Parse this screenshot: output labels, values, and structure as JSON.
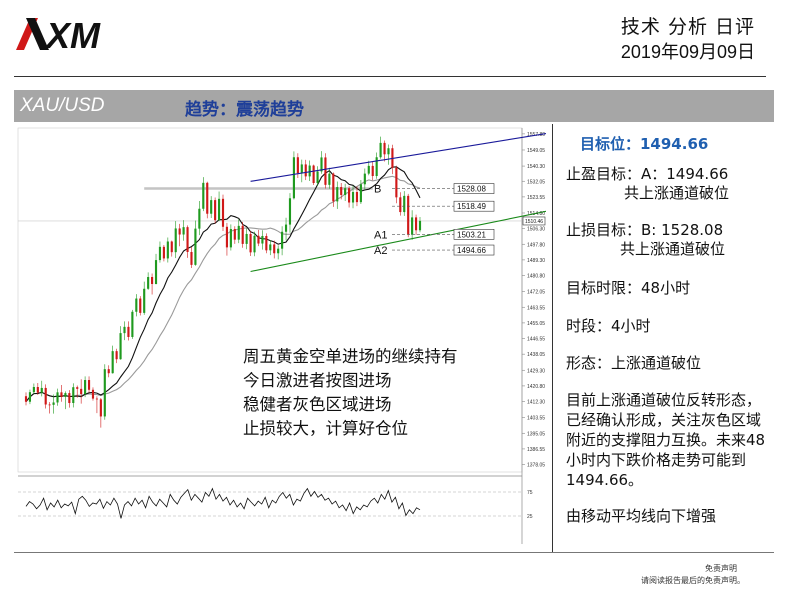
{
  "header": {
    "logo_text": "XM",
    "title": "技术 分析 日评",
    "date": "2019年09月09日"
  },
  "bar": {
    "symbol": "XAU/USD",
    "trend": "趋势：震荡趋势"
  },
  "colors": {
    "bull": "#1f9a1f",
    "bear": "#d01818",
    "upper_channel": "#1a1a9a",
    "lower_channel": "#1a8a1a",
    "ma_fast": "#111111",
    "ma_slow": "#9a9a9a",
    "target_text": "#1f5fb0",
    "trend_text": "#1f3f99",
    "bar_bg": "#a6a6a6"
  },
  "chart_data": {
    "type": "candlestick",
    "yaxis_labels": [
      "1557.80",
      "1549.05",
      "1540.30",
      "1532.05",
      "1523.55",
      "1514.80",
      "1506.30",
      "1497.80",
      "1489.30",
      "1480.80",
      "1472.05",
      "1463.55",
      "1455.05",
      "1446.55",
      "1438.05",
      "1429.30",
      "1420.80",
      "1412.30",
      "1403.55",
      "1395.05",
      "1386.55",
      "1378.05"
    ],
    "ylim": [
      1374,
      1561
    ],
    "last_price": "1510.46",
    "levels": [
      {
        "label": "B",
        "value": 1528.08,
        "text": "1528.08"
      },
      {
        "label": "",
        "value": 1518.49,
        "text": "1518.49"
      },
      {
        "label": "A1",
        "value": 1503.21,
        "text": "1503.21"
      },
      {
        "label": "A2",
        "value": 1494.66,
        "text": "1494.66"
      }
    ],
    "annotations": [
      "周五黄金空单进场的继续持有",
      "今日激进者按图进场",
      "稳健者灰色区域进场",
      "止损较大，计算好仓位"
    ],
    "upper_channel": {
      "x": [
        57,
        135
      ],
      "y": [
        1532,
        1559
      ]
    },
    "lower_channel": {
      "x": [
        57,
        135
      ],
      "y": [
        1483,
        1517
      ]
    },
    "oscillator": {
      "levels": [
        "75",
        "25"
      ],
      "ylim": [
        0,
        100
      ],
      "values": [
        45,
        55,
        50,
        40,
        48,
        62,
        38,
        52,
        44,
        58,
        42,
        50,
        46,
        54,
        30,
        60,
        66,
        58,
        45,
        52,
        50,
        60,
        41,
        55,
        48,
        62,
        50,
        20,
        48,
        55,
        46,
        62,
        50,
        58,
        42,
        66,
        54,
        46,
        60,
        52,
        44,
        70,
        58,
        50,
        64,
        72,
        80,
        58,
        70,
        62,
        54,
        74,
        66,
        82,
        60,
        70,
        56,
        64,
        48,
        58,
        44,
        52,
        40,
        62,
        54,
        46,
        56,
        50,
        64,
        42,
        58,
        52,
        66,
        74,
        62,
        70,
        48,
        60,
        56,
        72,
        82,
        66,
        76,
        64,
        70,
        58,
        62,
        50,
        56,
        42,
        48,
        36,
        52,
        30,
        44,
        38,
        48,
        44,
        56,
        62,
        52,
        70,
        60,
        78,
        54,
        64,
        40,
        52,
        26,
        38,
        30,
        42,
        38
      ]
    },
    "ohlc": [
      [
        1415.2,
        1417.3,
        1410.2,
        1412.2
      ],
      [
        1412.2,
        1418.8,
        1410.9,
        1417.4
      ],
      [
        1417.4,
        1422.1,
        1416.4,
        1420.2
      ],
      [
        1420.2,
        1422.4,
        1415.9,
        1417.1
      ],
      [
        1417.1,
        1423.6,
        1415.1,
        1419.7
      ],
      [
        1419.7,
        1421.6,
        1408.5,
        1410.7
      ],
      [
        1410.7,
        1412.0,
        1405.8,
        1410.5
      ],
      [
        1410.5,
        1416.1,
        1405.7,
        1411.8
      ],
      [
        1411.8,
        1419.3,
        1410.0,
        1417.3
      ],
      [
        1417.3,
        1421.3,
        1412.2,
        1414.8
      ],
      [
        1414.8,
        1417.8,
        1408.2,
        1416.9
      ],
      [
        1416.9,
        1418.5,
        1409.0,
        1411.5
      ],
      [
        1411.5,
        1422.2,
        1409.1,
        1420.1
      ],
      [
        1420.1,
        1421.0,
        1414.4,
        1419.2
      ],
      [
        1419.2,
        1424.4,
        1411.2,
        1416.4
      ],
      [
        1416.4,
        1426.0,
        1414.7,
        1424.0
      ],
      [
        1424.0,
        1426.0,
        1417.1,
        1418.7
      ],
      [
        1418.7,
        1420.0,
        1412.8,
        1413.9
      ],
      [
        1413.9,
        1415.2,
        1406.0,
        1413.5
      ],
      [
        1413.5,
        1414.2,
        1398.1,
        1404.2
      ],
      [
        1404.2,
        1432.6,
        1402.4,
        1429.9
      ],
      [
        1429.9,
        1432.0,
        1425.5,
        1427.7
      ],
      [
        1427.7,
        1442.7,
        1427.5,
        1439.7
      ],
      [
        1439.7,
        1441.0,
        1433.2,
        1435.3
      ],
      [
        1435.3,
        1453.3,
        1435.0,
        1449.5
      ],
      [
        1449.5,
        1455.9,
        1445.7,
        1452.9
      ],
      [
        1452.9,
        1455.9,
        1445.5,
        1447.4
      ],
      [
        1447.4,
        1462.1,
        1446.4,
        1461.1
      ],
      [
        1461.1,
        1470.7,
        1458.6,
        1468.3
      ],
      [
        1468.3,
        1469.6,
        1459.1,
        1460.5
      ],
      [
        1460.5,
        1477.5,
        1459.4,
        1473.6
      ],
      [
        1473.6,
        1482.5,
        1473.0,
        1480.0
      ],
      [
        1480.0,
        1481.9,
        1470.5,
        1476.2
      ],
      [
        1476.2,
        1492.6,
        1476.0,
        1489.2
      ],
      [
        1489.2,
        1499.3,
        1487.8,
        1496.4
      ],
      [
        1496.4,
        1497.4,
        1488.5,
        1490.1
      ],
      [
        1490.1,
        1501.5,
        1487.9,
        1499.3
      ],
      [
        1499.3,
        1499.8,
        1491.1,
        1493.5
      ],
      [
        1493.5,
        1510.4,
        1490.3,
        1506.4
      ],
      [
        1506.4,
        1508.9,
        1496.7,
        1503.1
      ],
      [
        1503.1,
        1510.9,
        1499.7,
        1507.1
      ],
      [
        1507.1,
        1508.1,
        1490.4,
        1493.6
      ],
      [
        1493.6,
        1496.3,
        1484.9,
        1486.6
      ],
      [
        1486.6,
        1510.7,
        1486.1,
        1506.3
      ],
      [
        1506.3,
        1521.3,
        1502.8,
        1517.1
      ],
      [
        1517.1,
        1534.3,
        1515.8,
        1531.2
      ],
      [
        1531.2,
        1531.8,
        1511.9,
        1514.4
      ],
      [
        1514.4,
        1524.0,
        1512.1,
        1521.8
      ],
      [
        1521.8,
        1523.2,
        1509.1,
        1510.9
      ],
      [
        1510.9,
        1526.5,
        1510.4,
        1522.5
      ],
      [
        1522.5,
        1524.8,
        1505.0,
        1507.3
      ],
      [
        1507.3,
        1509.4,
        1491.6,
        1496.1
      ],
      [
        1496.1,
        1508.6,
        1494.4,
        1506.1
      ],
      [
        1506.1,
        1507.6,
        1498.0,
        1500.3
      ],
      [
        1500.3,
        1511.4,
        1498.4,
        1507.8
      ],
      [
        1507.8,
        1510.0,
        1495.9,
        1498.0
      ],
      [
        1498.0,
        1506.4,
        1495.1,
        1503.4
      ],
      [
        1503.4,
        1505.0,
        1491.4,
        1493.4
      ],
      [
        1493.4,
        1504.7,
        1491.3,
        1502.4
      ],
      [
        1502.4,
        1505.6,
        1496.8,
        1498.2
      ],
      [
        1498.2,
        1505.4,
        1494.9,
        1502.3
      ],
      [
        1502.3,
        1503.7,
        1492.9,
        1494.5
      ],
      [
        1494.5,
        1500.1,
        1491.9,
        1497.7
      ],
      [
        1497.7,
        1499.8,
        1490.1,
        1492.9
      ],
      [
        1492.9,
        1497.2,
        1489.6,
        1495.4
      ],
      [
        1495.4,
        1507.6,
        1491.8,
        1504.6
      ],
      [
        1504.6,
        1512.2,
        1500.0,
        1508.5
      ],
      [
        1508.5,
        1525.6,
        1504.1,
        1522.8
      ],
      [
        1522.8,
        1548.3,
        1522.1,
        1545.1
      ],
      [
        1545.1,
        1547.3,
        1533.8,
        1536.5
      ],
      [
        1536.5,
        1543.8,
        1531.5,
        1541.2
      ],
      [
        1541.2,
        1543.7,
        1532.7,
        1534.7
      ],
      [
        1534.7,
        1543.3,
        1532.2,
        1540.6
      ],
      [
        1540.6,
        1541.1,
        1530.0,
        1531.1
      ],
      [
        1531.1,
        1540.2,
        1529.6,
        1537.4
      ],
      [
        1537.4,
        1548.4,
        1536.1,
        1545.0
      ],
      [
        1545.0,
        1547.3,
        1528.1,
        1530.1
      ],
      [
        1530.1,
        1539.4,
        1528.0,
        1536.2
      ],
      [
        1536.2,
        1536.8,
        1518.1,
        1521.1
      ],
      [
        1521.1,
        1531.9,
        1517.0,
        1528.9
      ],
      [
        1528.9,
        1531.1,
        1522.2,
        1524.6
      ],
      [
        1524.6,
        1530.7,
        1521.3,
        1528.3
      ],
      [
        1528.3,
        1529.4,
        1517.8,
        1520.5
      ],
      [
        1520.5,
        1529.6,
        1517.4,
        1526.2
      ],
      [
        1526.2,
        1529.2,
        1518.5,
        1520.7
      ],
      [
        1520.7,
        1532.7,
        1519.7,
        1530.4
      ],
      [
        1530.4,
        1539.0,
        1527.8,
        1536.2
      ],
      [
        1536.2,
        1543.2,
        1535.3,
        1540.4
      ],
      [
        1540.4,
        1542.9,
        1532.6,
        1534.9
      ],
      [
        1534.9,
        1547.7,
        1533.4,
        1545.1
      ],
      [
        1545.1,
        1556.3,
        1544.3,
        1552.9
      ],
      [
        1552.9,
        1554.2,
        1542.8,
        1546.7
      ],
      [
        1546.7,
        1552.0,
        1541.0,
        1550.0
      ],
      [
        1550.0,
        1551.9,
        1535.9,
        1539.4
      ],
      [
        1539.4,
        1540.5,
        1520.1,
        1523.3
      ],
      [
        1523.3,
        1526.1,
        1513.4,
        1515.3
      ],
      [
        1515.3,
        1526.7,
        1513.2,
        1524.1
      ],
      [
        1524.1,
        1525.2,
        1501.6,
        1503.0
      ],
      [
        1503.0,
        1516.3,
        1500.2,
        1512.4
      ],
      [
        1512.4,
        1513.9,
        1502.9,
        1505.4
      ],
      [
        1505.4,
        1512.6,
        1504.3,
        1510.5
      ]
    ]
  },
  "right_panel": {
    "target": "目标位：1494.66",
    "tp_line1": "止盈目标：A：1494.66",
    "tp_line2": "共上涨通道破位",
    "sl_line1": "止损目标：B: 1528.08",
    "sl_line2": "共上涨通道破位",
    "horizon": "目标时限：48小时",
    "timeframe": "时段：4小时",
    "pattern": "形态：上涨通道破位",
    "desc1": "目前上涨通道破位反转形态，",
    "desc2": "已经确认形成，关注灰色区域",
    "desc3": "附近的支撑阻力互换。未来48",
    "desc4": "小时内下跌价格走势可能到",
    "desc5": "1494.66。",
    "ma_note": "由移动平均线向下增强"
  },
  "footer": {
    "disclaimer_title": "免责声明",
    "disclaimer_text": "请阅读报告最后的免责声明。"
  }
}
